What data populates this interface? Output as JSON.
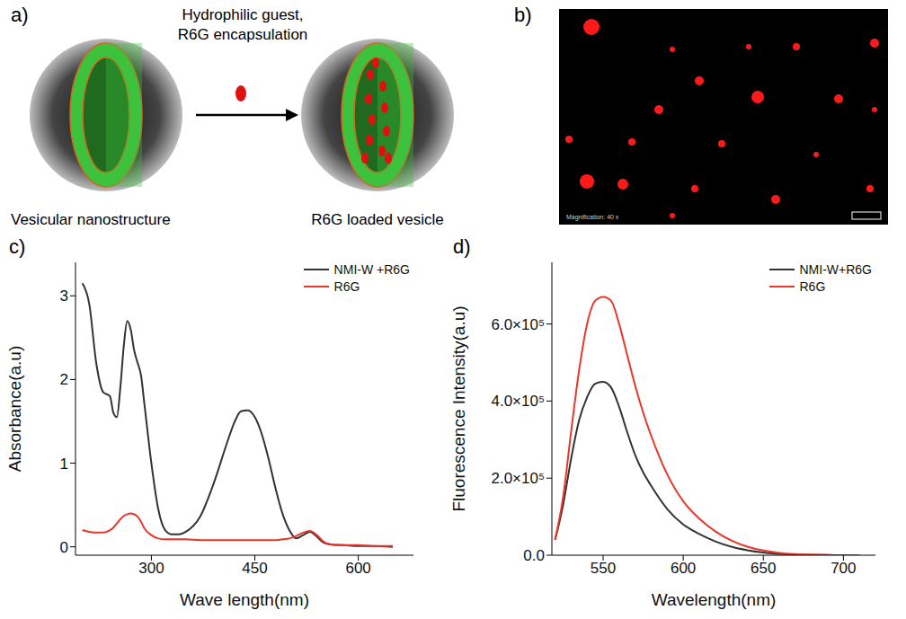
{
  "figure": {
    "a": {
      "label": "a)",
      "arrow_text": [
        "Hydrophilic guest,",
        "R6G encapsulation"
      ],
      "left_caption": "Vesicular nanostructure",
      "right_caption": "R6G loaded vesicle"
    },
    "b": {
      "label": "b)",
      "caption": "Magnification: 40 x"
    }
  },
  "chart_data": [
    {
      "label": "c)",
      "type": "line",
      "x_label": "Wave length(nm)",
      "y_label": "Absorbance(a.u)",
      "x": [
        200,
        210,
        220,
        230,
        240,
        245,
        250,
        255,
        260,
        265,
        270,
        275,
        280,
        285,
        290,
        300,
        310,
        320,
        330,
        340,
        350,
        370,
        390,
        410,
        420,
        430,
        440,
        450,
        460,
        470,
        480,
        490,
        500,
        510,
        520,
        530,
        540,
        550,
        560,
        580,
        600,
        620,
        650
      ],
      "series": [
        {
          "name": "NMI-W +R6G",
          "color": "#333333",
          "values": [
            3.15,
            2.9,
            2.2,
            1.85,
            1.8,
            1.6,
            1.55,
            1.9,
            2.4,
            2.7,
            2.6,
            2.35,
            2.2,
            2.05,
            1.7,
            1.0,
            0.45,
            0.2,
            0.15,
            0.15,
            0.18,
            0.35,
            0.75,
            1.25,
            1.48,
            1.62,
            1.63,
            1.55,
            1.35,
            1.05,
            0.7,
            0.4,
            0.2,
            0.1,
            0.14,
            0.18,
            0.12,
            0.05,
            0.03,
            0.02,
            0.01,
            0.01,
            0.0
          ]
        },
        {
          "name": "R6G",
          "color": "#e8362a",
          "values": [
            0.2,
            0.18,
            0.17,
            0.17,
            0.2,
            0.23,
            0.28,
            0.33,
            0.37,
            0.39,
            0.4,
            0.39,
            0.36,
            0.3,
            0.22,
            0.14,
            0.1,
            0.09,
            0.09,
            0.09,
            0.09,
            0.08,
            0.08,
            0.08,
            0.08,
            0.08,
            0.08,
            0.08,
            0.08,
            0.08,
            0.08,
            0.09,
            0.1,
            0.13,
            0.17,
            0.19,
            0.14,
            0.06,
            0.03,
            0.02,
            0.02,
            0.01,
            0.01
          ]
        }
      ],
      "xlim": [
        190,
        680
      ],
      "xticks": [
        300,
        450,
        600
      ],
      "ylim": [
        -0.1,
        3.4
      ],
      "yticks": [
        0,
        1,
        2,
        3
      ],
      "legend": "upper right",
      "grid": false
    },
    {
      "label": "d)",
      "type": "line",
      "x_label": "Wavelength(nm)",
      "y_label": "Fluorescence Intensity(a.u)",
      "x": [
        520,
        525,
        530,
        535,
        540,
        545,
        550,
        555,
        560,
        565,
        570,
        575,
        580,
        590,
        600,
        610,
        620,
        630,
        640,
        650,
        660,
        670,
        680,
        690,
        700,
        710
      ],
      "series": [
        {
          "name": "NMI-W+R6G",
          "color": "#333333",
          "values": [
            40000,
            130000,
            250000,
            350000,
            410000,
            445000,
            450000,
            435000,
            385000,
            320000,
            260000,
            215000,
            180000,
            120000,
            80000,
            55000,
            36000,
            22000,
            13000,
            7000,
            3500,
            1500,
            700,
            300,
            0,
            0
          ]
        },
        {
          "name": "R6G",
          "color": "#e8362a",
          "values": [
            40000,
            150000,
            320000,
            480000,
            600000,
            660000,
            670000,
            660000,
            600000,
            520000,
            440000,
            370000,
            310000,
            210000,
            140000,
            95000,
            62000,
            38000,
            22000,
            12000,
            6000,
            3000,
            1500,
            500,
            0,
            0
          ]
        }
      ],
      "xlim": [
        518,
        720
      ],
      "xticks": [
        550,
        600,
        650,
        700
      ],
      "ylim": [
        0,
        760000
      ],
      "yticks": [
        {
          "value": 0,
          "label": "0.0"
        },
        {
          "value": 200000,
          "label": "2.0×10⁵"
        },
        {
          "value": 400000,
          "label": "4.0×10⁵"
        },
        {
          "value": 600000,
          "label": "6.0×10⁵"
        }
      ],
      "legend": "upper right",
      "grid": false
    }
  ]
}
